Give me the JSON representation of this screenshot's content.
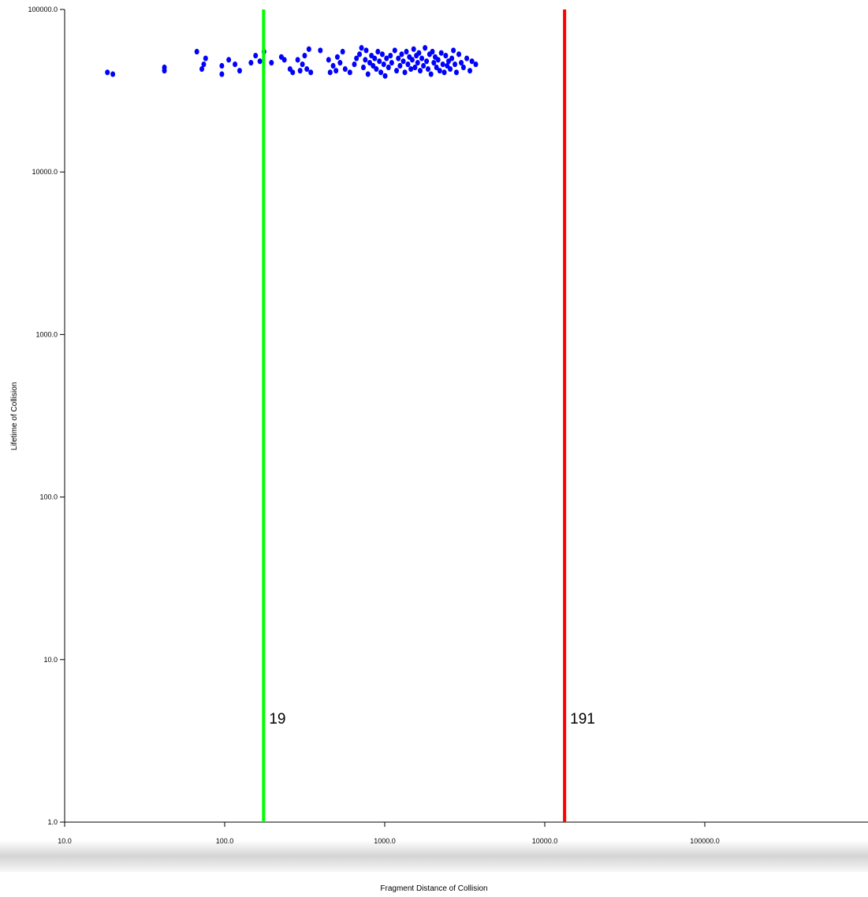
{
  "chart_data": {
    "type": "scatter",
    "title": "",
    "xlabel": "Fragment Distance of Collision",
    "ylabel": "Lifetime of Collision",
    "x_scale": "log",
    "y_scale": "log",
    "xlim": [
      10,
      1000000
    ],
    "ylim": [
      1,
      100000
    ],
    "x_ticks": [
      10,
      100,
      1000,
      10000,
      100000
    ],
    "x_tick_labels": [
      "10.0",
      "100.0",
      "1000.0",
      "10000.0",
      "100000.0"
    ],
    "y_ticks": [
      1,
      10,
      100,
      1000,
      10000,
      100000
    ],
    "y_tick_labels": [
      "1.0",
      "10.0",
      "100.0",
      "1000.0",
      "10000.0",
      "100000.0"
    ],
    "grid": false,
    "point_color": "#0000ff",
    "vertical_lines": [
      {
        "x": 175,
        "label": "19",
        "color": "#00ff00"
      },
      {
        "x": 13300,
        "label": "191",
        "color": "#ff0000"
      }
    ],
    "points": [
      [
        18.5,
        41000
      ],
      [
        20,
        40000
      ],
      [
        42,
        44000
      ],
      [
        42,
        42000
      ],
      [
        67,
        55000
      ],
      [
        72,
        43000
      ],
      [
        74,
        46000
      ],
      [
        76,
        50000
      ],
      [
        96,
        45000
      ],
      [
        96,
        40000
      ],
      [
        106,
        49000
      ],
      [
        116,
        46000
      ],
      [
        124,
        42000
      ],
      [
        146,
        47000
      ],
      [
        156,
        52000
      ],
      [
        166,
        48000
      ],
      [
        176,
        55000
      ],
      [
        196,
        47000
      ],
      [
        226,
        51000
      ],
      [
        236,
        49000
      ],
      [
        256,
        43000
      ],
      [
        266,
        41000
      ],
      [
        286,
        49000
      ],
      [
        296,
        42000
      ],
      [
        306,
        46000
      ],
      [
        316,
        52000
      ],
      [
        326,
        43000
      ],
      [
        336,
        57000
      ],
      [
        345,
        41000
      ],
      [
        396,
        56000
      ],
      [
        446,
        49000
      ],
      [
        456,
        41000
      ],
      [
        476,
        45000
      ],
      [
        496,
        42000
      ],
      [
        506,
        51000
      ],
      [
        526,
        47000
      ],
      [
        546,
        55000
      ],
      [
        566,
        43000
      ],
      [
        606,
        41000
      ],
      [
        646,
        46000
      ],
      [
        666,
        50000
      ],
      [
        696,
        53000
      ],
      [
        716,
        58000
      ],
      [
        736,
        44000
      ],
      [
        756,
        49000
      ],
      [
        766,
        56000
      ],
      [
        786,
        40000
      ],
      [
        806,
        47000
      ],
      [
        826,
        52000
      ],
      [
        846,
        45000
      ],
      [
        866,
        50000
      ],
      [
        886,
        43000
      ],
      [
        906,
        55000
      ],
      [
        926,
        48000
      ],
      [
        946,
        41000
      ],
      [
        966,
        53000
      ],
      [
        986,
        46000
      ],
      [
        1006,
        39000
      ],
      [
        1026,
        50000
      ],
      [
        1056,
        44000
      ],
      [
        1086,
        52000
      ],
      [
        1106,
        47000
      ],
      [
        1156,
        56000
      ],
      [
        1186,
        42000
      ],
      [
        1216,
        50000
      ],
      [
        1246,
        45000
      ],
      [
        1276,
        53000
      ],
      [
        1306,
        48000
      ],
      [
        1336,
        41000
      ],
      [
        1366,
        55000
      ],
      [
        1396,
        46000
      ],
      [
        1426,
        51000
      ],
      [
        1456,
        43000
      ],
      [
        1486,
        49000
      ],
      [
        1516,
        57000
      ],
      [
        1546,
        44000
      ],
      [
        1576,
        52000
      ],
      [
        1606,
        47000
      ],
      [
        1636,
        54000
      ],
      [
        1666,
        42000
      ],
      [
        1706,
        50000
      ],
      [
        1746,
        45000
      ],
      [
        1786,
        58000
      ],
      [
        1826,
        48000
      ],
      [
        1866,
        43000
      ],
      [
        1906,
        53000
      ],
      [
        1946,
        40000
      ],
      [
        1986,
        55000
      ],
      [
        2026,
        47000
      ],
      [
        2066,
        51000
      ],
      [
        2106,
        44000
      ],
      [
        2156,
        49000
      ],
      [
        2206,
        42000
      ],
      [
        2256,
        54000
      ],
      [
        2306,
        46000
      ],
      [
        2356,
        41000
      ],
      [
        2406,
        52000
      ],
      [
        2456,
        45000
      ],
      [
        2506,
        48000
      ],
      [
        2566,
        43000
      ],
      [
        2626,
        50000
      ],
      [
        2686,
        56000
      ],
      [
        2746,
        46000
      ],
      [
        2806,
        41000
      ],
      [
        2906,
        53000
      ],
      [
        3006,
        47000
      ],
      [
        3106,
        44000
      ],
      [
        3256,
        50000
      ],
      [
        3406,
        42000
      ],
      [
        3506,
        48000
      ],
      [
        3706,
        46000
      ]
    ]
  }
}
